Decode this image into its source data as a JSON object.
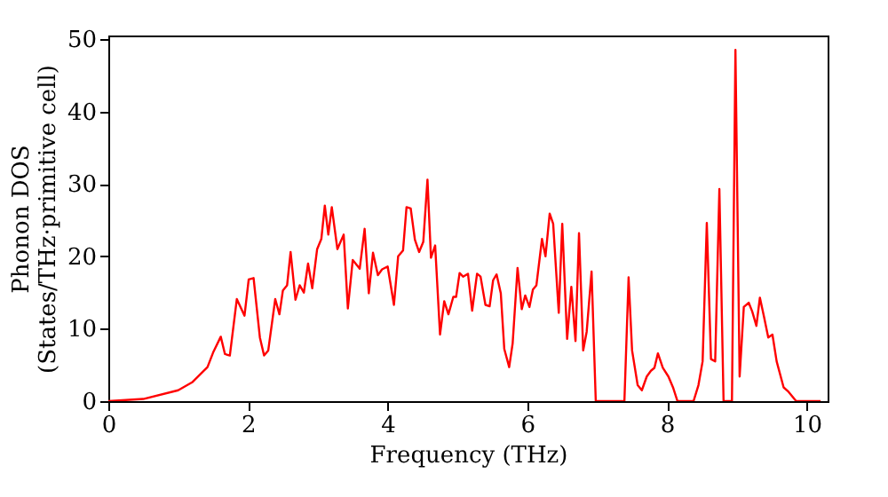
{
  "chart_data": {
    "type": "line",
    "xlabel": "Frequency (THz)",
    "ylabel": "Phonon DOS\n(States/THz·primitive cell)",
    "xlim": [
      0,
      10.3
    ],
    "xticks": [
      0,
      2,
      4,
      6,
      8,
      10
    ],
    "ylim": [
      0,
      50.5
    ],
    "yticks": [
      0,
      10,
      20,
      30,
      40,
      50
    ],
    "grid": false,
    "legend": false,
    "marker": "none",
    "line_style": "solid",
    "series": [
      {
        "color": "#ff0000",
        "x": [
          0,
          0.5,
          1.0,
          1.2,
          1.42,
          1.5,
          1.61,
          1.67,
          1.74,
          1.84,
          1.95,
          2.01,
          2.08,
          2.17,
          2.23,
          2.29,
          2.39,
          2.45,
          2.5,
          2.56,
          2.61,
          2.68,
          2.74,
          2.8,
          2.86,
          2.92,
          2.99,
          3.05,
          3.1,
          3.15,
          3.2,
          3.28,
          3.37,
          3.43,
          3.5,
          3.6,
          3.67,
          3.73,
          3.79,
          3.86,
          3.92,
          4.0,
          4.09,
          4.15,
          4.22,
          4.27,
          4.33,
          4.39,
          4.45,
          4.51,
          4.57,
          4.62,
          4.68,
          4.75,
          4.81,
          4.87,
          4.94,
          4.98,
          5.03,
          5.08,
          5.15,
          5.21,
          5.28,
          5.33,
          5.4,
          5.46,
          5.51,
          5.56,
          5.62,
          5.67,
          5.74,
          5.79,
          5.86,
          5.92,
          5.97,
          6.03,
          6.08,
          6.13,
          6.21,
          6.26,
          6.32,
          6.37,
          6.45,
          6.5,
          6.57,
          6.63,
          6.69,
          6.74,
          6.8,
          6.85,
          6.92,
          6.98,
          7.39,
          7.45,
          7.5,
          7.58,
          7.64,
          7.71,
          7.77,
          7.82,
          7.87,
          7.94,
          8.02,
          8.09,
          8.15,
          8.38,
          8.45,
          8.51,
          8.57,
          8.63,
          8.69,
          8.75,
          8.81,
          8.93,
          8.98,
          9.04,
          9.1,
          9.17,
          9.22,
          9.28,
          9.33,
          9.39,
          9.45,
          9.51,
          9.57,
          9.67,
          9.74,
          9.85,
          10.2
        ],
        "values": [
          0,
          0.3,
          1.5,
          2.6,
          4.7,
          6.7,
          8.9,
          6.5,
          6.3,
          14.1,
          11.8,
          16.8,
          17,
          8.8,
          6.3,
          7,
          14.1,
          12,
          15.3,
          16,
          20.6,
          14,
          16,
          15,
          19,
          15.6,
          21,
          22.4,
          27,
          23,
          26.8,
          21,
          23,
          12.8,
          19.5,
          18.3,
          23.8,
          14.9,
          20.5,
          17.4,
          18.2,
          18.6,
          13.3,
          20,
          20.8,
          26.8,
          26.6,
          22.3,
          20.6,
          22,
          30.6,
          19.8,
          21.5,
          9.2,
          13.8,
          12,
          14.4,
          14.4,
          17.7,
          17.2,
          17.6,
          12.5,
          17.6,
          17.2,
          13.3,
          13.1,
          16.7,
          17.5,
          14.9,
          7.2,
          4.7,
          8,
          18.4,
          12.7,
          14.6,
          13,
          15.4,
          16,
          22.4,
          20,
          25.9,
          24.5,
          12.2,
          24.5,
          8.6,
          15.8,
          8.3,
          23.2,
          7,
          9.6,
          17.9,
          0,
          0,
          17.1,
          7,
          2.2,
          1.5,
          3.4,
          4.2,
          4.6,
          6.6,
          4.6,
          3.4,
          1.8,
          0,
          0,
          2.2,
          5.5,
          24.6,
          5.8,
          5.5,
          29.3,
          0,
          0,
          48.5,
          3.4,
          13,
          13.6,
          12.4,
          10.4,
          14.3,
          11.6,
          8.8,
          9.2,
          5.5,
          1.9,
          1.3,
          0,
          0
        ]
      }
    ]
  }
}
